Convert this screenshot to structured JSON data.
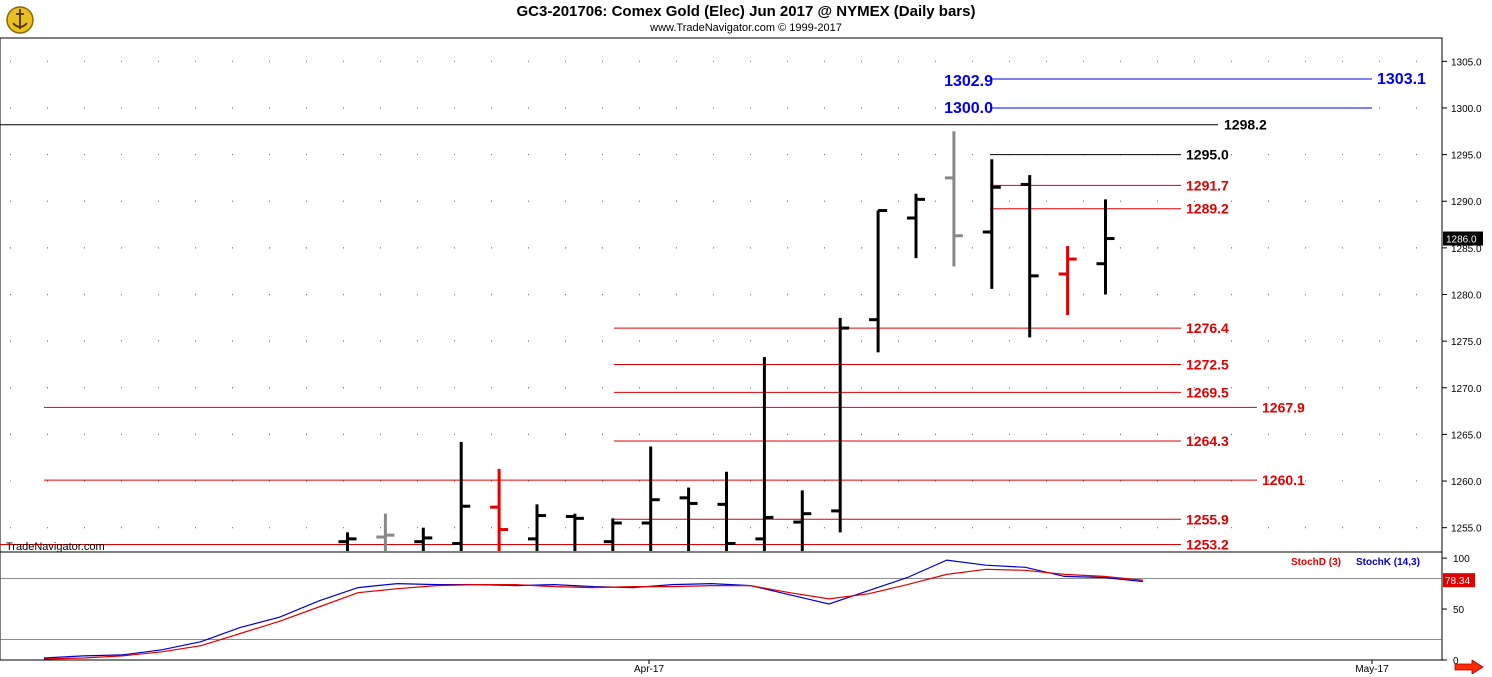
{
  "header": {
    "title": "GC3-201706:  Comex Gold (Elec) Jun 2017 @ NYMEX  (Daily bars)",
    "subtitle": "www.TradeNavigator.com © 1999-2017",
    "watermark": "TradeNavigator.com"
  },
  "icons": {
    "logo": "trade-navigator-logo",
    "next": "right-arrow-icon"
  },
  "colors": {
    "up_bar": "#000000",
    "gray_bar": "#888888",
    "red_bar": "#e00000",
    "red_level": "#e00000",
    "blue_level": "#0000ee",
    "stochD": "#e00000",
    "stochK": "#0000cc"
  },
  "chart_data": [
    {
      "type": "ohlc",
      "name": "price",
      "ylim": [
        1252.5,
        1307.5
      ],
      "yticks": [
        1255.0,
        1260.0,
        1265.0,
        1270.0,
        1275.0,
        1280.0,
        1285.0,
        1290.0,
        1295.0,
        1300.0,
        1305.0
      ],
      "last_price_label": "1286.0",
      "bars": [
        {
          "color": "black",
          "high": 1254.5,
          "low": 1252.5,
          "open": 1253.5,
          "close": 1253.8
        },
        {
          "color": "gray",
          "high": 1256.5,
          "low": 1252.5,
          "open": 1254.0,
          "close": 1254.2
        },
        {
          "color": "black",
          "high": 1255.0,
          "low": 1252.5,
          "open": 1253.5,
          "close": 1253.9
        },
        {
          "color": "black",
          "high": 1264.2,
          "low": 1252.5,
          "open": 1253.3,
          "close": 1257.3
        },
        {
          "color": "red",
          "high": 1261.3,
          "low": 1252.5,
          "open": 1257.2,
          "close": 1254.8
        },
        {
          "color": "black",
          "high": 1257.5,
          "low": 1252.5,
          "open": 1253.8,
          "close": 1256.3
        },
        {
          "color": "black",
          "high": 1256.5,
          "low": 1252.5,
          "open": 1256.2,
          "close": 1256.0
        },
        {
          "color": "black",
          "high": 1256.0,
          "low": 1252.5,
          "open": 1253.5,
          "close": 1255.5
        },
        {
          "color": "black",
          "high": 1263.7,
          "low": 1252.5,
          "open": 1255.5,
          "close": 1258.0
        },
        {
          "color": "black",
          "high": 1259.3,
          "low": 1252.5,
          "open": 1258.2,
          "close": 1257.6
        },
        {
          "color": "black",
          "high": 1261.0,
          "low": 1252.5,
          "open": 1257.5,
          "close": 1253.3
        },
        {
          "color": "black",
          "high": 1273.3,
          "low": 1252.5,
          "open": 1253.8,
          "close": 1256.1
        },
        {
          "color": "black",
          "high": 1259.0,
          "low": 1252.5,
          "open": 1255.6,
          "close": 1256.5
        },
        {
          "color": "black",
          "high": 1277.5,
          "low": 1254.5,
          "open": 1256.8,
          "close": 1276.4
        },
        {
          "color": "black",
          "high": 1289.0,
          "low": 1273.8,
          "open": 1277.3,
          "close": 1289.0
        },
        {
          "color": "black",
          "high": 1290.8,
          "low": 1283.9,
          "open": 1288.2,
          "close": 1290.2
        },
        {
          "color": "gray",
          "high": 1297.5,
          "low": 1283.0,
          "open": 1292.5,
          "close": 1286.3
        },
        {
          "color": "black",
          "high": 1294.5,
          "low": 1280.6,
          "open": 1286.7,
          "close": 1291.5
        },
        {
          "color": "black",
          "high": 1292.8,
          "low": 1275.4,
          "open": 1291.8,
          "close": 1282.0
        },
        {
          "color": "red",
          "high": 1285.2,
          "low": 1277.8,
          "open": 1282.2,
          "close": 1283.8
        },
        {
          "color": "black",
          "high": 1290.2,
          "low": 1280.0,
          "open": 1283.3,
          "close": 1286.0
        }
      ],
      "levels": [
        {
          "label": "1303.1",
          "value": 1303.1,
          "color": "blue",
          "start_bar": 16,
          "label_pos": "far"
        },
        {
          "label": "1302.9",
          "value": 1302.9,
          "color": "blue",
          "start_bar": 16,
          "label_pos": "left"
        },
        {
          "label": "1300.0",
          "value": 1300.0,
          "color": "blue",
          "start_bar": 16,
          "label_pos": "left"
        },
        {
          "label": "1298.2",
          "value": 1298.2,
          "color": "black",
          "start_bar": -1,
          "label_pos": "far-mid"
        },
        {
          "label": "1295.0",
          "value": 1295.0,
          "color": "black",
          "start_bar": 16,
          "label_pos": "mid"
        },
        {
          "label": "1291.7",
          "value": 1291.7,
          "color": "red",
          "start_bar": 16,
          "label_pos": "mid"
        },
        {
          "label": "1289.2",
          "value": 1289.2,
          "color": "red",
          "start_bar": 16,
          "label_pos": "mid"
        },
        {
          "label": "1276.4",
          "value": 1276.4,
          "color": "red",
          "start_bar": 9,
          "label_pos": "mid"
        },
        {
          "label": "1272.5",
          "value": 1272.5,
          "color": "red",
          "start_bar": 9,
          "label_pos": "mid"
        },
        {
          "label": "1269.5",
          "value": 1269.5,
          "color": "red",
          "start_bar": 9,
          "label_pos": "mid"
        },
        {
          "label": "1267.9",
          "value": 1267.9,
          "color": "red",
          "start_bar": 0,
          "label_pos": "far-mid"
        },
        {
          "label": "1264.3",
          "value": 1264.3,
          "color": "red",
          "start_bar": 9,
          "label_pos": "mid"
        },
        {
          "label": "1260.1",
          "value": 1260.1,
          "color": "red",
          "start_bar": 0,
          "label_pos": "far-mid"
        },
        {
          "label": "1255.9",
          "value": 1255.9,
          "color": "red",
          "start_bar": 9,
          "label_pos": "mid"
        },
        {
          "label": "1253.2",
          "value": 1253.2,
          "color": "red",
          "start_bar": 0,
          "label_pos": "mid"
        }
      ]
    },
    {
      "type": "line",
      "name": "stochastic",
      "ylim": [
        0,
        105
      ],
      "yticks": [
        0,
        50,
        100
      ],
      "reference_lines": [
        80,
        20
      ],
      "last_value_label": "78.34",
      "legend": [
        "StochD (3)",
        "StochK (14,3)"
      ],
      "x_labels": [
        {
          "label": "Apr-17",
          "bar": 16.0
        },
        {
          "label": "May-17",
          "bar": 35.0
        }
      ],
      "series": [
        {
          "name": "StochK (14,3)",
          "values": [
            2,
            4,
            5,
            10,
            18,
            32,
            42,
            58,
            71,
            75,
            74,
            74,
            73,
            74,
            72,
            71,
            74,
            75,
            73,
            64,
            55,
            68,
            81,
            98,
            93,
            91,
            82,
            81,
            77
          ]
        },
        {
          "name": "StochD (3)",
          "values": [
            1,
            2,
            4,
            8,
            14,
            26,
            38,
            52,
            66,
            70,
            73,
            74,
            74,
            72,
            71,
            72,
            72,
            73,
            73,
            66,
            60,
            65,
            74,
            84,
            89,
            88,
            84,
            82,
            78.34
          ]
        }
      ]
    }
  ]
}
